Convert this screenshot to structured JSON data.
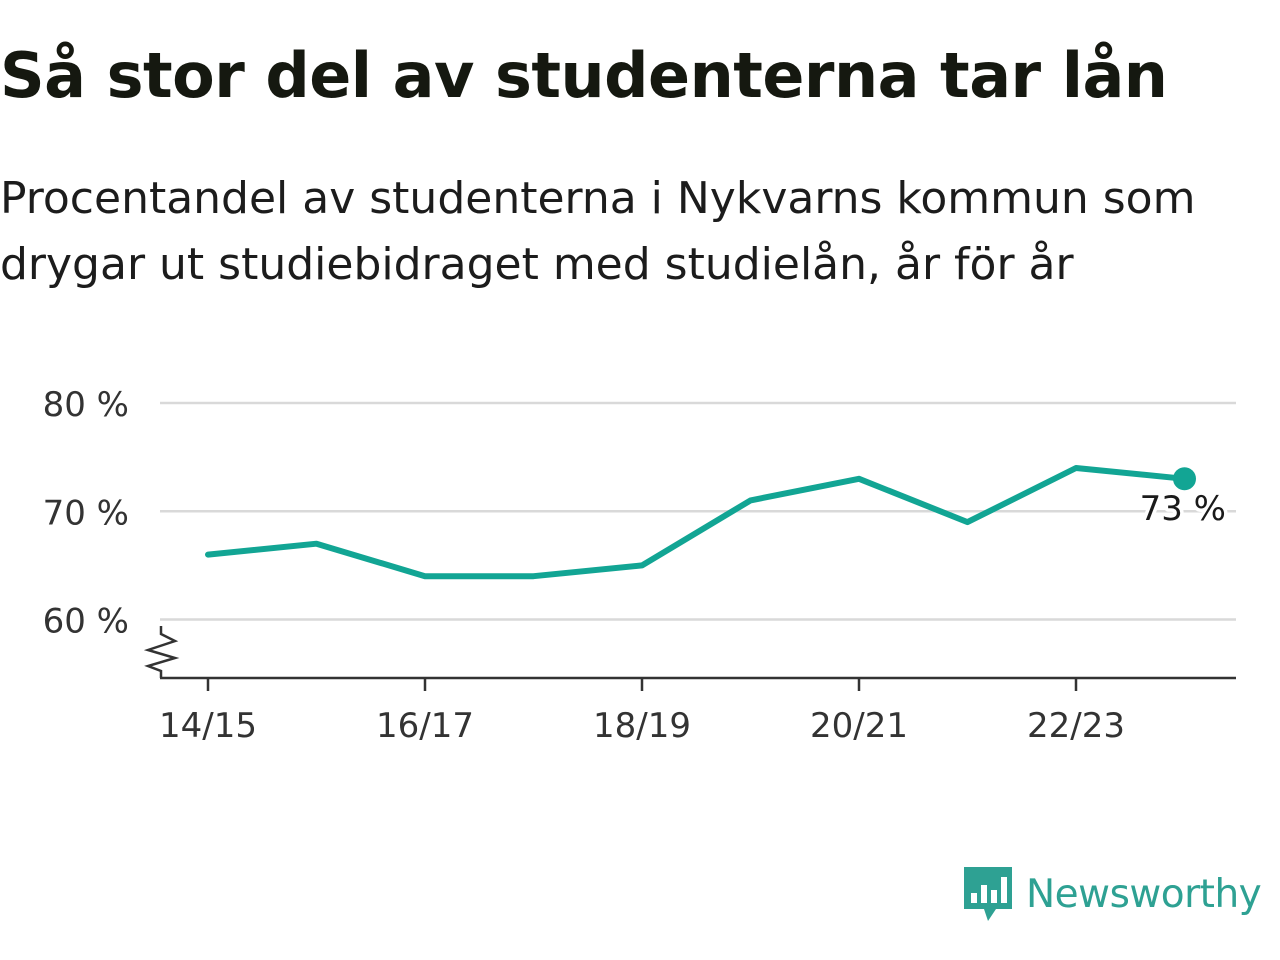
{
  "title": "Så stor del av studenterna tar lån",
  "subtitle": "Procentandel av studenterna i Nykvarns kommun som drygar ut studiebidraget med studielån, år för år",
  "brand": {
    "name": "Newsworthy",
    "icon": "newsworthy-logo-icon",
    "color": "#2ea193"
  },
  "colors": {
    "line": "#12a594",
    "grid": "#d9d9d9",
    "axis": "#333333",
    "text": "#333333"
  },
  "chart_data": {
    "type": "line",
    "x": [
      "14/15",
      "15/16",
      "16/17",
      "17/18",
      "18/19",
      "19/20",
      "20/21",
      "21/22",
      "22/23",
      "23/24"
    ],
    "values": [
      66,
      67,
      64,
      64,
      65,
      71,
      73,
      69,
      74,
      73
    ],
    "x_tick_labels": [
      "14/15",
      "16/17",
      "18/19",
      "20/21",
      "22/23"
    ],
    "y_ticks": [
      60,
      70,
      80
    ],
    "y_tick_labels": [
      "60 %",
      "70 %",
      "80 %"
    ],
    "ylim": [
      54.6,
      80
    ],
    "axis_break": true,
    "grid": true,
    "end_label": "73 %",
    "xlabel": "",
    "ylabel": ""
  }
}
